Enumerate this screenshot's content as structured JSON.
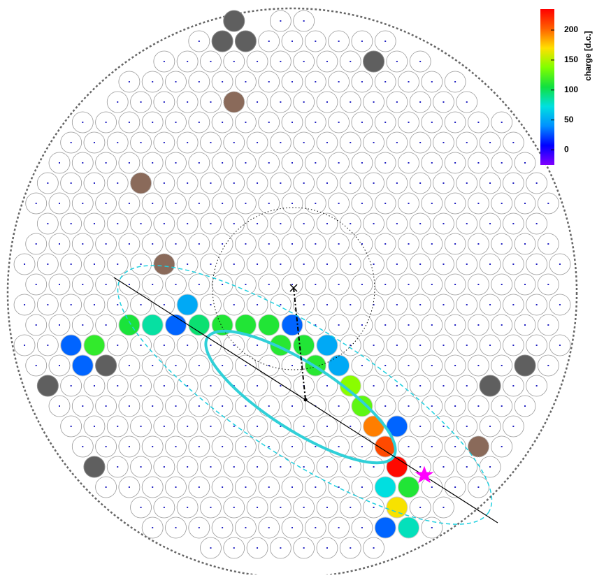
{
  "chart_data": {
    "type": "camera",
    "colorbar_label": "charge [d.c.]",
    "clim": [
      -25,
      235
    ],
    "cticks": [
      0,
      50,
      100,
      150,
      200
    ],
    "colormap": [
      "#8000ff",
      "#0000ff",
      "#0090ff",
      "#00e0e0",
      "#10e040",
      "#80ff00",
      "#ffe000",
      "#ff6000",
      "#ff0000"
    ],
    "values": [
      50,
      108,
      85,
      30,
      95,
      110,
      110,
      110,
      30,
      112,
      110,
      50,
      115,
      30,
      112,
      50,
      30,
      140,
      128,
      195,
      30,
      210,
      232,
      72,
      110,
      168,
      80,
      30
    ]
  }
}
